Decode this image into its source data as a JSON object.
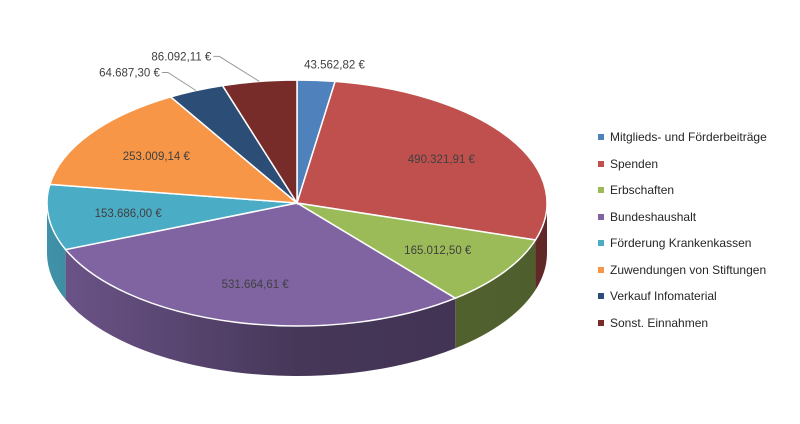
{
  "chart_data": {
    "type": "pie",
    "style": "3d",
    "title": "",
    "currency": "€",
    "legend_position": "right",
    "slices": [
      {
        "name": "Mitglieds- und Förderbeiträge",
        "value": 43562.82,
        "label": "43.562,82 €",
        "color": "#4F81BD",
        "label_placement": "outside"
      },
      {
        "name": "Spenden",
        "value": 490321.91,
        "label": "490.321,91 €",
        "color": "#C0504D",
        "label_placement": "inside"
      },
      {
        "name": "Erbschaften",
        "value": 165012.5,
        "label": "165.012,50 €",
        "color": "#9BBB59",
        "label_placement": "inside"
      },
      {
        "name": "Bundeshaushalt",
        "value": 531664.61,
        "label": "531.664,61 €",
        "color": "#8064A2",
        "label_placement": "inside"
      },
      {
        "name": "Förderung Krankenkassen",
        "value": 153686.0,
        "label": "153.686,00 €",
        "color": "#4BACC6",
        "label_placement": "inside"
      },
      {
        "name": "Zuwendungen von Stiftungen",
        "value": 253009.14,
        "label": "253.009,14 €",
        "color": "#F79646",
        "label_placement": "inside"
      },
      {
        "name": "Verkauf Infomaterial",
        "value": 64687.3,
        "label": "64.687,30 €",
        "color": "#2C4D75",
        "label_placement": "outside"
      },
      {
        "name": "Sonst. Einnahmen",
        "value": 86092.11,
        "label": "86.092,11 €",
        "color": "#772C2A",
        "label_placement": "outside"
      }
    ]
  }
}
